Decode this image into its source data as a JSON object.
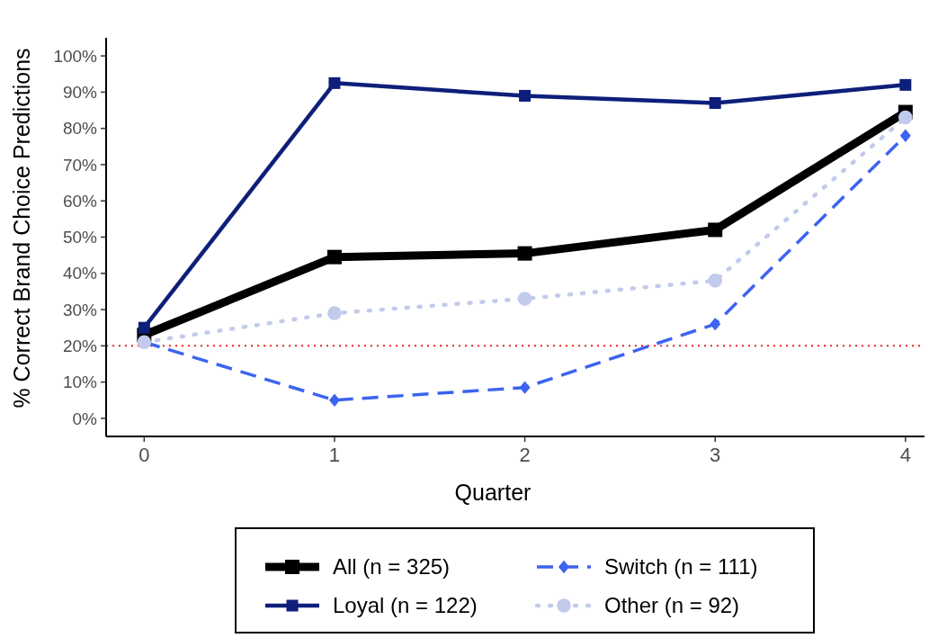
{
  "chart_data": {
    "type": "line",
    "xlabel": "Quarter",
    "ylabel": "% Correct Brand Choice Predictions",
    "x": [
      0,
      1,
      2,
      3,
      4
    ],
    "xlim": [
      -0.2,
      4.1
    ],
    "xticks": [
      0,
      1,
      2,
      3,
      4
    ],
    "ylim": [
      -5,
      105
    ],
    "yticks": [
      {
        "value": 0,
        "label": "0%"
      },
      {
        "value": 10,
        "label": "10%"
      },
      {
        "value": 20,
        "label": "20%"
      },
      {
        "value": 30,
        "label": "30%"
      },
      {
        "value": 40,
        "label": "40%"
      },
      {
        "value": 50,
        "label": "50%"
      },
      {
        "value": 60,
        "label": "60%"
      },
      {
        "value": 70,
        "label": "70%"
      },
      {
        "value": 80,
        "label": "80%"
      },
      {
        "value": 90,
        "label": "90%"
      },
      {
        "value": 100,
        "label": "100%"
      }
    ],
    "grid": false,
    "legend": "bottom",
    "ref_lines": [
      {
        "axis": "y",
        "value": 20,
        "color": "#ee2222",
        "line_style": "dotted"
      }
    ],
    "series": [
      {
        "name": "All (n = 325)",
        "color": "#000000",
        "marker": "square",
        "line_style": "solid",
        "values": [
          23,
          44.5,
          45.5,
          52,
          84.5
        ]
      },
      {
        "name": "Loyal (n = 122)",
        "color": "#0d1f7a",
        "marker": "square",
        "line_style": "solid",
        "values": [
          25,
          92.5,
          89,
          87,
          92
        ]
      },
      {
        "name": "Switch (n = 111)",
        "color": "#3c64f0",
        "marker": "diamond",
        "line_style": "dashed",
        "values": [
          21,
          5,
          8.5,
          26,
          78
        ]
      },
      {
        "name": "Other (n = 92)",
        "color": "#c2cbec",
        "marker": "circle",
        "line_style": "dotted",
        "values": [
          21,
          29,
          33,
          38,
          83
        ]
      }
    ]
  }
}
